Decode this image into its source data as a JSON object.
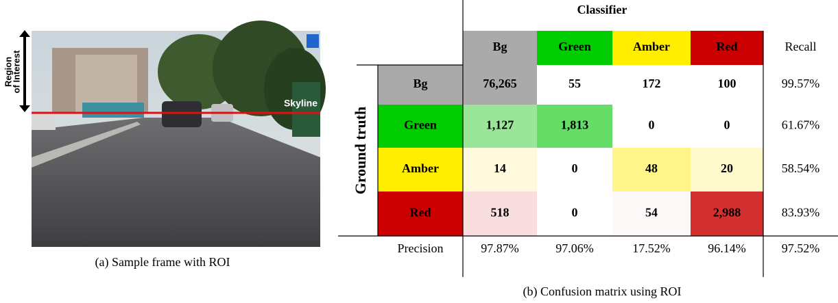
{
  "figure_a": {
    "caption": "(a) Sample frame with ROI",
    "roi_label": [
      "Region",
      "of Interest"
    ],
    "skyline_label": "Skyline"
  },
  "figure_b": {
    "caption": "(b) Confusion matrix using ROI",
    "header": "Classifier",
    "row_header": "Ground truth",
    "columns": [
      "Bg",
      "Green",
      "Amber",
      "Red"
    ],
    "recall_label": "Recall",
    "precision_label": "Precision",
    "rows": [
      {
        "label": "Bg",
        "cells": [
          "76,265",
          "55",
          "172",
          "100"
        ],
        "recall": "99.57%"
      },
      {
        "label": "Green",
        "cells": [
          "1,127",
          "1,813",
          "0",
          "0"
        ],
        "recall": "61.67%"
      },
      {
        "label": "Amber",
        "cells": [
          "14",
          "0",
          "48",
          "20"
        ],
        "recall": "58.54%"
      },
      {
        "label": "Red",
        "cells": [
          "518",
          "0",
          "54",
          "2,988"
        ],
        "recall": "83.93%"
      }
    ],
    "precision": [
      "97.87%",
      "97.06%",
      "17.52%",
      "96.14%"
    ],
    "overall": "97.52%"
  }
}
